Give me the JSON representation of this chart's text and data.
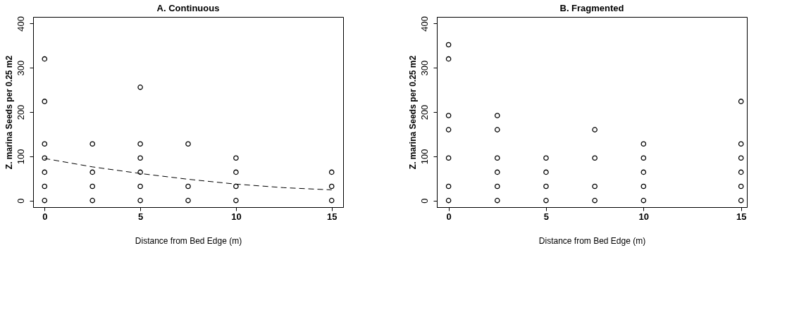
{
  "chart_data": [
    {
      "type": "scatter",
      "title": "A. Continuous",
      "xlabel": "Distance from Bed Edge (m)",
      "ylabel": "Z. marina Seeds per 0.25 m2",
      "marker": "circle",
      "grid": false,
      "xlim": [
        -0.6,
        15.6
      ],
      "ylim": [
        -15,
        415
      ],
      "xticks": [
        0,
        5,
        10,
        15
      ],
      "yticks": [
        0,
        100,
        200,
        300,
        400
      ],
      "series": [
        {
          "color": "#000000",
          "x": [
            0,
            0,
            0,
            0,
            0,
            0,
            0,
            2.5,
            2.5,
            2.5,
            2.5,
            5,
            5,
            5,
            5,
            5,
            5,
            7.5,
            7.5,
            7.5,
            10,
            10,
            10,
            10,
            15,
            15,
            15
          ],
          "values": [
            320,
            224,
            128,
            96,
            64,
            32,
            0,
            128,
            64,
            32,
            0,
            256,
            128,
            96,
            64,
            32,
            0,
            128,
            32,
            0,
            96,
            64,
            32,
            0,
            64,
            32,
            0
          ]
        },
        {
          "type": "line",
          "color": "#000000",
          "line_style": "dashed",
          "marker": "none",
          "x": [
            0,
            2.5,
            5,
            7.5,
            10,
            12.5,
            15
          ],
          "values": [
            95,
            76,
            61,
            48,
            37,
            29,
            24
          ]
        }
      ]
    },
    {
      "type": "scatter",
      "title": "B. Fragmented",
      "xlabel": "Distance from Bed Edge (m)",
      "ylabel": "Z. marina Seeds per 0.25 m2",
      "marker": "circle",
      "grid": false,
      "xlim": [
        -0.6,
        15.3
      ],
      "ylim": [
        -15,
        415
      ],
      "xticks": [
        0,
        5,
        10,
        15
      ],
      "yticks": [
        0,
        100,
        200,
        300,
        400
      ],
      "series": [
        {
          "color": "#000000",
          "x": [
            0,
            0,
            0,
            0,
            0,
            0,
            0,
            2.5,
            2.5,
            2.5,
            2.5,
            2.5,
            2.5,
            5,
            5,
            5,
            5,
            7.5,
            7.5,
            7.5,
            7.5,
            10,
            10,
            10,
            10,
            10,
            15,
            15,
            15,
            15,
            15,
            15
          ],
          "values": [
            352,
            320,
            192,
            160,
            96,
            32,
            0,
            192,
            160,
            96,
            64,
            32,
            0,
            96,
            64,
            32,
            0,
            160,
            96,
            32,
            0,
            128,
            96,
            64,
            32,
            0,
            224,
            128,
            96,
            64,
            32,
            0
          ]
        }
      ]
    }
  ]
}
